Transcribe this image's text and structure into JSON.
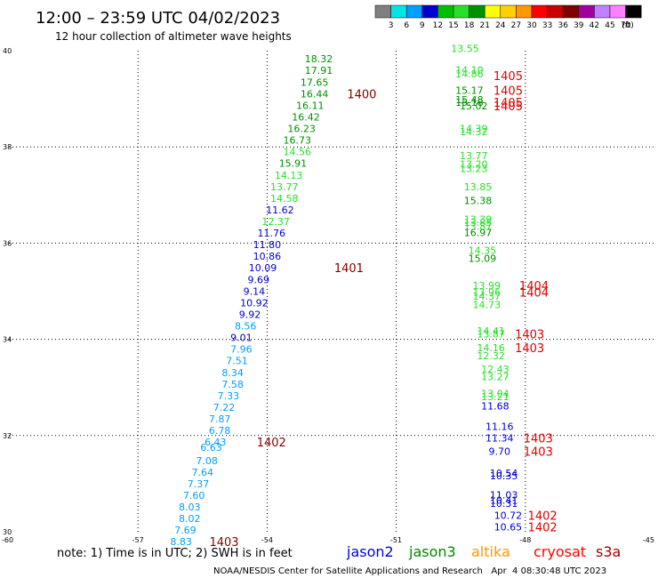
{
  "header": {
    "title": "12:00 – 23:59 UTC 04/02/2023",
    "subtitle": "12 hour collection of altimeter wave heights"
  },
  "scale": {
    "unit": "(ft)",
    "bins": [
      {
        "label": "",
        "color": "#808080"
      },
      {
        "label": "3",
        "color": "#00e5e5"
      },
      {
        "label": "6",
        "color": "#00a0ff"
      },
      {
        "label": "9",
        "color": "#0000d0"
      },
      {
        "label": "12",
        "color": "#00c000"
      },
      {
        "label": "15",
        "color": "#28e028"
      },
      {
        "label": "18",
        "color": "#009000"
      },
      {
        "label": "21",
        "color": "#ffff00"
      },
      {
        "label": "24",
        "color": "#ffd000"
      },
      {
        "label": "27",
        "color": "#ff9800"
      },
      {
        "label": "30",
        "color": "#ff0000"
      },
      {
        "label": "33",
        "color": "#c80000"
      },
      {
        "label": "36",
        "color": "#800000"
      },
      {
        "label": "39",
        "color": "#a000a0"
      },
      {
        "label": "42",
        "color": "#c080ff"
      },
      {
        "label": "45",
        "color": "#ff80ff"
      },
      {
        "label": "70",
        "color": "#000000"
      }
    ]
  },
  "note": "note: 1) Time is in UTC; 2) SWH is in feet",
  "satellites": [
    {
      "name": "jason2",
      "color": "#0000e0"
    },
    {
      "name": "jason3",
      "color": "#008800"
    },
    {
      "name": "altika",
      "color": "#ff9800"
    },
    {
      "name": "cryosat",
      "color": "#ff0000"
    },
    {
      "name": "s3a",
      "color": "#a00000"
    }
  ],
  "footer": "NOAA/NESDIS Center for Satellite Applications and Research   Apr  4 08:30:48 UTC 2023",
  "chart_data": {
    "type": "scatter",
    "xlim": [
      -60,
      -45
    ],
    "ylim": [
      30,
      40
    ],
    "x_ticks": [
      "-60",
      "-57",
      "-54",
      "-51",
      "-48",
      "-45"
    ],
    "y_ticks": [
      "30",
      "32",
      "34",
      "36",
      "38",
      "40"
    ],
    "grid": true,
    "value_labels": [
      {
        "lon": -52.8,
        "lat": 39.83,
        "text": "18.32",
        "color": "#009000"
      },
      {
        "lon": -52.8,
        "lat": 39.59,
        "text": "17.91",
        "color": "#009000"
      },
      {
        "lon": -52.9,
        "lat": 39.34,
        "text": "17.65",
        "color": "#009000"
      },
      {
        "lon": -52.9,
        "lat": 39.1,
        "text": "16.44",
        "color": "#009000"
      },
      {
        "lon": -53.0,
        "lat": 38.86,
        "text": "16.11",
        "color": "#009000"
      },
      {
        "lon": -53.1,
        "lat": 38.62,
        "text": "16.42",
        "color": "#009000"
      },
      {
        "lon": -53.2,
        "lat": 38.38,
        "text": "16.23",
        "color": "#009000"
      },
      {
        "lon": -53.3,
        "lat": 38.14,
        "text": "16.73",
        "color": "#009000"
      },
      {
        "lon": -53.3,
        "lat": 37.9,
        "text": "14.56",
        "color": "#28e028"
      },
      {
        "lon": -53.4,
        "lat": 37.66,
        "text": "15.91",
        "color": "#009000"
      },
      {
        "lon": -53.5,
        "lat": 37.41,
        "text": "14.13",
        "color": "#28e028"
      },
      {
        "lon": -53.6,
        "lat": 37.17,
        "text": "13.77",
        "color": "#28e028"
      },
      {
        "lon": -53.6,
        "lat": 36.93,
        "text": "14.58",
        "color": "#28e028"
      },
      {
        "lon": -53.7,
        "lat": 36.69,
        "text": "11.62",
        "color": "#0000d0"
      },
      {
        "lon": -53.8,
        "lat": 36.45,
        "text": "12.37",
        "color": "#28e028"
      },
      {
        "lon": -53.9,
        "lat": 36.21,
        "text": "11.76",
        "color": "#0000d0"
      },
      {
        "lon": -54.0,
        "lat": 35.97,
        "text": "11.80",
        "color": "#0000d0"
      },
      {
        "lon": -54.0,
        "lat": 35.73,
        "text": "10.86",
        "color": "#0000d0"
      },
      {
        "lon": -54.1,
        "lat": 35.49,
        "text": "10.09",
        "color": "#0000d0"
      },
      {
        "lon": -54.2,
        "lat": 35.24,
        "text": "9.69",
        "color": "#0000d0"
      },
      {
        "lon": -54.3,
        "lat": 35.0,
        "text": "9.14",
        "color": "#0000d0"
      },
      {
        "lon": -54.3,
        "lat": 34.76,
        "text": "10.92",
        "color": "#0000d0"
      },
      {
        "lon": -54.4,
        "lat": 34.52,
        "text": "9.92",
        "color": "#0000d0"
      },
      {
        "lon": -54.5,
        "lat": 34.28,
        "text": "8.56",
        "color": "#00a0ff"
      },
      {
        "lon": -54.6,
        "lat": 34.04,
        "text": "9.01",
        "color": "#0000d0"
      },
      {
        "lon": -54.6,
        "lat": 33.8,
        "text": "7.96",
        "color": "#00a0ff"
      },
      {
        "lon": -54.7,
        "lat": 33.56,
        "text": "7.51",
        "color": "#00a0ff"
      },
      {
        "lon": -54.8,
        "lat": 33.31,
        "text": "8.34",
        "color": "#00a0ff"
      },
      {
        "lon": -54.8,
        "lat": 33.07,
        "text": "7.58",
        "color": "#00a0ff"
      },
      {
        "lon": -54.9,
        "lat": 32.83,
        "text": "7.33",
        "color": "#00a0ff"
      },
      {
        "lon": -55.0,
        "lat": 32.59,
        "text": "7.22",
        "color": "#00a0ff"
      },
      {
        "lon": -55.1,
        "lat": 32.35,
        "text": "7.87",
        "color": "#00a0ff"
      },
      {
        "lon": -55.1,
        "lat": 32.11,
        "text": "6.78",
        "color": "#00a0ff"
      },
      {
        "lon": -55.2,
        "lat": 31.87,
        "text": "6.43",
        "color": "#00a0ff"
      },
      {
        "lon": -55.3,
        "lat": 31.76,
        "text": "6.63",
        "color": "#00a0ff"
      },
      {
        "lon": -55.4,
        "lat": 31.48,
        "text": "7.08",
        "color": "#00a0ff"
      },
      {
        "lon": -55.5,
        "lat": 31.24,
        "text": "7.64",
        "color": "#00a0ff"
      },
      {
        "lon": -55.6,
        "lat": 31.0,
        "text": "7.37",
        "color": "#00a0ff"
      },
      {
        "lon": -55.7,
        "lat": 30.76,
        "text": "7.60",
        "color": "#00a0ff"
      },
      {
        "lon": -55.8,
        "lat": 30.52,
        "text": "8.03",
        "color": "#00a0ff"
      },
      {
        "lon": -55.8,
        "lat": 30.28,
        "text": "8.02",
        "color": "#00a0ff"
      },
      {
        "lon": -55.9,
        "lat": 30.04,
        "text": "7.69",
        "color": "#00a0ff"
      },
      {
        "lon": -56.0,
        "lat": 29.8,
        "text": "8.83",
        "color": "#00a0ff"
      },
      {
        "lon": -49.4,
        "lat": 40.05,
        "text": "13.55",
        "color": "#28e028"
      },
      {
        "lon": -49.3,
        "lat": 39.6,
        "text": "14.10",
        "color": "#28e028"
      },
      {
        "lon": -49.3,
        "lat": 39.52,
        "text": "14.86",
        "color": "#28e028"
      },
      {
        "lon": -49.3,
        "lat": 39.18,
        "text": "15.17",
        "color": "#009000"
      },
      {
        "lon": -49.3,
        "lat": 38.98,
        "text": "15.48",
        "color": "#009000"
      },
      {
        "lon": -49.3,
        "lat": 38.93,
        "text": "15.18",
        "color": "#009000"
      },
      {
        "lon": -49.2,
        "lat": 38.85,
        "text": "15.02",
        "color": "#009000"
      },
      {
        "lon": -49.2,
        "lat": 38.38,
        "text": "14.39",
        "color": "#28e028"
      },
      {
        "lon": -49.2,
        "lat": 38.32,
        "text": "14.32",
        "color": "#28e028"
      },
      {
        "lon": -49.2,
        "lat": 37.82,
        "text": "13.77",
        "color": "#28e028"
      },
      {
        "lon": -49.2,
        "lat": 37.64,
        "text": "13.20",
        "color": "#28e028"
      },
      {
        "lon": -49.2,
        "lat": 37.55,
        "text": "13.23",
        "color": "#28e028"
      },
      {
        "lon": -49.1,
        "lat": 37.17,
        "text": "13.85",
        "color": "#28e028"
      },
      {
        "lon": -49.1,
        "lat": 36.89,
        "text": "15.38",
        "color": "#009000"
      },
      {
        "lon": -49.1,
        "lat": 36.5,
        "text": "13.39",
        "color": "#28e028"
      },
      {
        "lon": -49.1,
        "lat": 36.43,
        "text": "13.85",
        "color": "#28e028"
      },
      {
        "lon": -49.1,
        "lat": 36.35,
        "text": "13.87",
        "color": "#28e028"
      },
      {
        "lon": -49.1,
        "lat": 36.22,
        "text": "16.97",
        "color": "#009000"
      },
      {
        "lon": -49.0,
        "lat": 35.85,
        "text": "14.35",
        "color": "#28e028"
      },
      {
        "lon": -49.0,
        "lat": 35.68,
        "text": "15.09",
        "color": "#009000"
      },
      {
        "lon": -48.9,
        "lat": 35.12,
        "text": "13.99",
        "color": "#28e028"
      },
      {
        "lon": -48.9,
        "lat": 34.98,
        "text": "13.96",
        "color": "#28e028"
      },
      {
        "lon": -48.9,
        "lat": 34.9,
        "text": "14.37",
        "color": "#28e028"
      },
      {
        "lon": -48.9,
        "lat": 34.72,
        "text": "14.73",
        "color": "#28e028"
      },
      {
        "lon": -48.8,
        "lat": 34.18,
        "text": "14.41",
        "color": "#28e028"
      },
      {
        "lon": -48.8,
        "lat": 34.11,
        "text": "13.87",
        "color": "#28e028"
      },
      {
        "lon": -48.8,
        "lat": 33.83,
        "text": "14.16",
        "color": "#28e028"
      },
      {
        "lon": -48.8,
        "lat": 33.66,
        "text": "12.32",
        "color": "#28e028"
      },
      {
        "lon": -48.7,
        "lat": 33.38,
        "text": "12.43",
        "color": "#28e028"
      },
      {
        "lon": -48.7,
        "lat": 33.23,
        "text": "13.27",
        "color": "#28e028"
      },
      {
        "lon": -48.7,
        "lat": 32.87,
        "text": "13.04",
        "color": "#28e028"
      },
      {
        "lon": -48.7,
        "lat": 32.81,
        "text": "13.21",
        "color": "#28e028"
      },
      {
        "lon": -48.7,
        "lat": 32.62,
        "text": "11.68",
        "color": "#0000d0"
      },
      {
        "lon": -48.6,
        "lat": 32.19,
        "text": "11.16",
        "color": "#0000d0"
      },
      {
        "lon": -48.6,
        "lat": 31.95,
        "text": "11.34",
        "color": "#0000d0"
      },
      {
        "lon": -48.6,
        "lat": 31.67,
        "text": "9.70",
        "color": "#0000d0"
      },
      {
        "lon": -48.5,
        "lat": 31.22,
        "text": "10.54",
        "color": "#0000d0"
      },
      {
        "lon": -48.5,
        "lat": 31.16,
        "text": "10.35",
        "color": "#0000d0"
      },
      {
        "lon": -48.5,
        "lat": 30.77,
        "text": "11.03",
        "color": "#0000d0"
      },
      {
        "lon": -48.5,
        "lat": 30.66,
        "text": "10.41",
        "color": "#0000d0"
      },
      {
        "lon": -48.5,
        "lat": 30.59,
        "text": "10.31",
        "color": "#0000d0"
      },
      {
        "lon": -48.4,
        "lat": 30.34,
        "text": "10.72",
        "color": "#0000d0"
      },
      {
        "lon": -48.4,
        "lat": 30.1,
        "text": "10.65",
        "color": "#0000d0"
      }
    ],
    "time_labels": [
      {
        "lon": -51.8,
        "lat": 39.1,
        "text": "1400",
        "color": "#800000"
      },
      {
        "lon": -52.1,
        "lat": 35.49,
        "text": "1401",
        "color": "#800000"
      },
      {
        "lon": -53.9,
        "lat": 31.87,
        "text": "1402",
        "color": "#800000"
      },
      {
        "lon": -55.0,
        "lat": 29.8,
        "text": "1403",
        "color": "#800000"
      },
      {
        "lon": -48.4,
        "lat": 39.48,
        "text": "1405",
        "color": "#e00000"
      },
      {
        "lon": -48.4,
        "lat": 39.18,
        "text": "1405",
        "color": "#e00000"
      },
      {
        "lon": -48.4,
        "lat": 38.93,
        "text": "1405",
        "color": "#e00000"
      },
      {
        "lon": -48.4,
        "lat": 38.85,
        "text": "1405",
        "color": "#e00000"
      },
      {
        "lon": -47.8,
        "lat": 35.12,
        "text": "1404",
        "color": "#e00000"
      },
      {
        "lon": -47.8,
        "lat": 34.98,
        "text": "1404",
        "color": "#e00000"
      },
      {
        "lon": -47.9,
        "lat": 34.11,
        "text": "1403",
        "color": "#e00000"
      },
      {
        "lon": -47.9,
        "lat": 33.83,
        "text": "1403",
        "color": "#e00000"
      },
      {
        "lon": -47.7,
        "lat": 31.95,
        "text": "1403",
        "color": "#e00000"
      },
      {
        "lon": -47.7,
        "lat": 31.67,
        "text": "1403",
        "color": "#e00000"
      },
      {
        "lon": -47.6,
        "lat": 30.34,
        "text": "1402",
        "color": "#e00000"
      },
      {
        "lon": -47.6,
        "lat": 30.1,
        "text": "1402",
        "color": "#e00000"
      }
    ]
  }
}
